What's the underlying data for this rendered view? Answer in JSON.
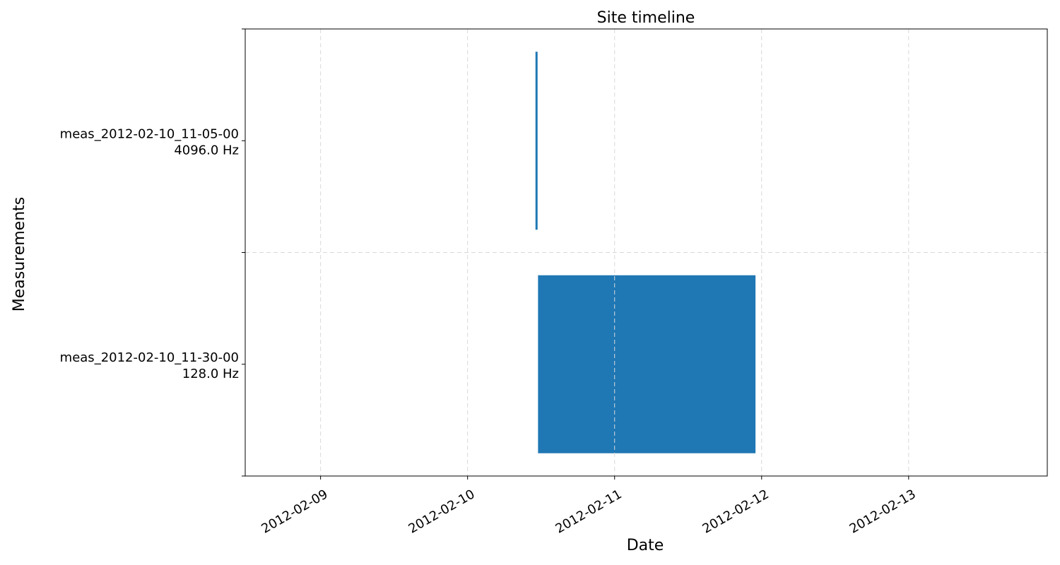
{
  "chart_data": {
    "type": "bar",
    "title": "Site timeline",
    "xlabel": "Date",
    "ylabel": "Measurements",
    "x_type": "datetime",
    "xlim": [
      "2012-02-08T11:42:00",
      "2012-02-13T22:38:00"
    ],
    "x_ticks": [
      "2012-02-09",
      "2012-02-10",
      "2012-02-11",
      "2012-02-12",
      "2012-02-13"
    ],
    "grid": true,
    "bar_color": "#1f77b4",
    "grid_color": "#d9d9d9",
    "series": [
      {
        "label_line1": "meas_2012-02-10_11-05-00",
        "label_line2": "4096.0 Hz",
        "start": "2012-02-10T11:05:00",
        "end": "2012-02-10T11:25:00"
      },
      {
        "label_line1": "meas_2012-02-10_11-30-00",
        "label_line2": "128.0 Hz",
        "start": "2012-02-10T11:30:00",
        "end": "2012-02-11T23:00:00"
      }
    ]
  }
}
